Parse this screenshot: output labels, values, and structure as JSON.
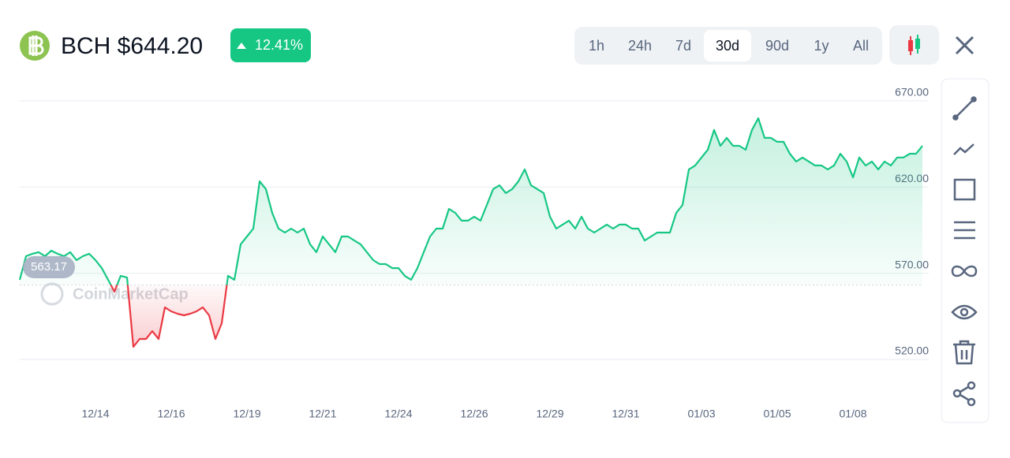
{
  "header": {
    "title": "BCH $644.20",
    "change": "12.41%",
    "timeframes": [
      "1h",
      "24h",
      "7d",
      "30d",
      "90d",
      "1y",
      "All"
    ],
    "selected_timeframe": "30d"
  },
  "watermark": "CoinMarketCap",
  "chart_data": {
    "type": "line",
    "categories": [
      null,
      null,
      null,
      null,
      null,
      null,
      null,
      null,
      null,
      null,
      null,
      null,
      "12/14",
      null,
      null,
      null,
      null,
      null,
      null,
      null,
      null,
      null,
      null,
      null,
      "12/16",
      null,
      null,
      null,
      null,
      null,
      null,
      null,
      null,
      null,
      null,
      null,
      "12/19",
      null,
      null,
      null,
      null,
      null,
      null,
      null,
      null,
      null,
      null,
      null,
      "12/21",
      null,
      null,
      null,
      null,
      null,
      null,
      null,
      null,
      null,
      null,
      null,
      "12/24",
      null,
      null,
      null,
      null,
      null,
      null,
      null,
      null,
      null,
      null,
      null,
      "12/26",
      null,
      null,
      null,
      null,
      null,
      null,
      null,
      null,
      null,
      null,
      null,
      "12/29",
      null,
      null,
      null,
      null,
      null,
      null,
      null,
      null,
      null,
      null,
      null,
      "12/31",
      null,
      null,
      null,
      null,
      null,
      null,
      null,
      null,
      null,
      null,
      null,
      "01/03",
      null,
      null,
      null,
      null,
      null,
      null,
      null,
      null,
      null,
      null,
      null,
      "01/05",
      null,
      null,
      null,
      null,
      null,
      null,
      null,
      null,
      null,
      null,
      null,
      "01/08",
      null,
      null,
      null,
      null,
      null,
      null,
      null,
      null,
      null,
      null,
      null
    ],
    "values": [
      566.2,
      579.9,
      581.3,
      582.2,
      579.9,
      583.1,
      581.3,
      579.9,
      582.2,
      577.6,
      579.9,
      581.3,
      577.6,
      573.0,
      566.2,
      559.3,
      568.5,
      567.5,
      527.3,
      531.9,
      531.9,
      536.4,
      531.9,
      550.2,
      547.9,
      546.5,
      545.6,
      546.5,
      547.9,
      550.2,
      545.6,
      531.9,
      541.0,
      568.5,
      566.2,
      586.8,
      591.3,
      595.9,
      623.3,
      618.8,
      605.0,
      595.9,
      593.6,
      595.9,
      593.6,
      595.9,
      586.8,
      582.2,
      591.3,
      586.8,
      582.2,
      591.3,
      591.3,
      589.0,
      586.8,
      582.2,
      577.6,
      575.3,
      575.3,
      573.0,
      573.0,
      568.5,
      566.2,
      573.0,
      582.2,
      591.3,
      595.9,
      595.9,
      607.3,
      605.0,
      600.5,
      600.5,
      602.8,
      600.5,
      609.6,
      618.8,
      621.0,
      616.5,
      618.8,
      623.3,
      630.2,
      621.0,
      618.8,
      616.5,
      602.8,
      595.9,
      598.2,
      600.5,
      595.9,
      602.8,
      595.9,
      593.6,
      595.9,
      598.2,
      595.9,
      598.2,
      598.2,
      595.9,
      595.9,
      589.0,
      591.3,
      593.6,
      593.6,
      593.6,
      605.0,
      609.6,
      630.2,
      632.5,
      637.1,
      641.6,
      653.1,
      643.9,
      648.5,
      643.9,
      643.9,
      641.6,
      653.1,
      659.9,
      648.5,
      648.5,
      646.2,
      646.2,
      639.3,
      634.8,
      637.1,
      634.8,
      632.5,
      632.5,
      630.2,
      632.5,
      639.3,
      634.8,
      625.6,
      637.1,
      632.5,
      634.8,
      630.2,
      634.8,
      632.5,
      637.1,
      637.1,
      639.3,
      639.3,
      643.9
    ],
    "ylim": [
      520,
      680
    ],
    "yticks": [
      {
        "value": 520,
        "label": "520.00"
      },
      {
        "value": 570,
        "label": "570.00"
      },
      {
        "value": 620,
        "label": "620.00"
      },
      {
        "value": 670,
        "label": "670.00"
      }
    ],
    "reference": {
      "value": 563.17,
      "label": "563.17"
    },
    "color_up": "#16c784",
    "color_down": "#ea3943",
    "grid": true
  }
}
